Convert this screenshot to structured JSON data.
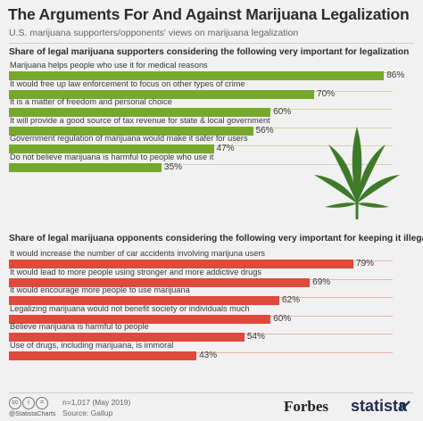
{
  "title": "The Arguments For And Against Marijuana Legalization",
  "subtitle": "U.S. marijuana supporters/opponents' views on marijuana legalization",
  "chart_data": [
    {
      "type": "bar",
      "orientation": "horizontal",
      "title": "Share of legal marijuana supporters considering the following very important for legalization",
      "categories": [
        "Marijuana helps people who use it for medical reasons",
        "It would free up law enforcement to focus on other types of crime",
        "It is a matter of freedom and personal choice",
        "It will provide a good source of tax revenue for state & local government",
        "Government regulation of marijuana would make it safer for users",
        "Do not believe marijuana is harmful to people who use it"
      ],
      "values": [
        86,
        70,
        60,
        56,
        47,
        35
      ],
      "value_labels": [
        "86%",
        "70%",
        "60%",
        "56%",
        "47%",
        "35%"
      ],
      "color": "#76a82c",
      "xlim": [
        0,
        88
      ]
    },
    {
      "type": "bar",
      "orientation": "horizontal",
      "title": "Share of legal marijuana opponents considering the following very important for keeping it illegal",
      "categories": [
        "It would increase the number of car accidents involving marijuna users",
        "It would lead to more people using stronger and more addictive drugs",
        "It would encourage more people to use marijuana",
        "Legalizing marijuana would not benefit society or individuals much",
        "Believe marijuana is harmful to people",
        "Use of drugs, including marijuana, is immoral"
      ],
      "values": [
        79,
        69,
        62,
        60,
        54,
        43
      ],
      "value_labels": [
        "79%",
        "69%",
        "62%",
        "60%",
        "54%",
        "43%"
      ],
      "color": "#de4a3b",
      "xlim": [
        0,
        88
      ]
    }
  ],
  "footer": {
    "handle": "@StatistaCharts",
    "sample": "n=1,017 (May 2019)",
    "source": "Source: Gallup",
    "brand_forbes": "Forbes",
    "brand_statista": "statista",
    "cc_icons": [
      "cc-icon",
      "by-icon",
      "nd-icon"
    ]
  },
  "icons": {
    "decoration": "cannabis-leaf-icon",
    "statista_mark": "statista-arrow-icon"
  },
  "colors": {
    "background": "#f1f1f1",
    "supporters": "#76a82c",
    "opponents": "#de4a3b",
    "leaf": "#3f7a2a"
  }
}
